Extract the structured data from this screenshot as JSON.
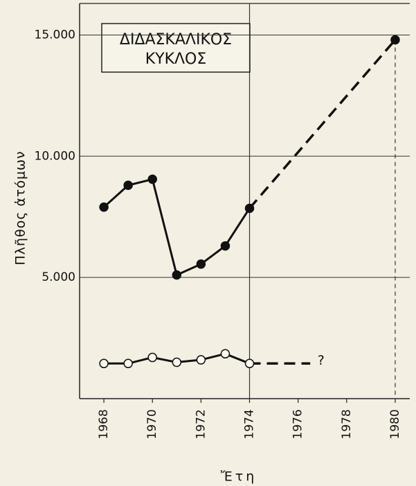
{
  "chart_data": {
    "type": "line",
    "title_lines": [
      "ΔΙΔΑΣΚΑΛΙΚΟΣ",
      "ΚΥΚΛΟΣ"
    ],
    "y_label": "Πλῆθος ἀτόμων",
    "x_label": "Ἔτη",
    "xlim": [
      1967,
      1980.6
    ],
    "ylim": [
      0,
      16300
    ],
    "xticks": [
      1968,
      1970,
      1972,
      1974,
      1976,
      1978,
      1980
    ],
    "yticks": [
      {
        "value": 5000,
        "label": "5.000"
      },
      {
        "value": 10000,
        "label": "10.000"
      },
      {
        "value": 15000,
        "label": "15.000"
      }
    ],
    "xgrid": [
      1974
    ],
    "grid": true,
    "series": [
      {
        "color": "#111111",
        "dash": false,
        "marker": "filled",
        "x": [
          1968,
          1969,
          1970,
          1971,
          1972,
          1973,
          1974
        ],
        "values": [
          7900,
          8800,
          9050,
          5100,
          5550,
          6300,
          7850
        ]
      },
      {
        "color": "#111111",
        "dash": true,
        "marker": "filled",
        "x": [
          1974,
          1980
        ],
        "values": [
          7850,
          14800
        ]
      },
      {
        "color": "#111111",
        "dash": false,
        "marker": "open",
        "x": [
          1968,
          1969,
          1970,
          1971,
          1972,
          1973,
          1974
        ],
        "values": [
          1450,
          1450,
          1700,
          1500,
          1600,
          1850,
          1450
        ]
      },
      {
        "color": "#111111",
        "dash": true,
        "marker": "none",
        "x": [
          1974,
          1976.5
        ],
        "values": [
          1450,
          1450
        ]
      }
    ],
    "annotations": [
      {
        "text": "?",
        "x": 1976.8,
        "y": 1450
      }
    ]
  }
}
